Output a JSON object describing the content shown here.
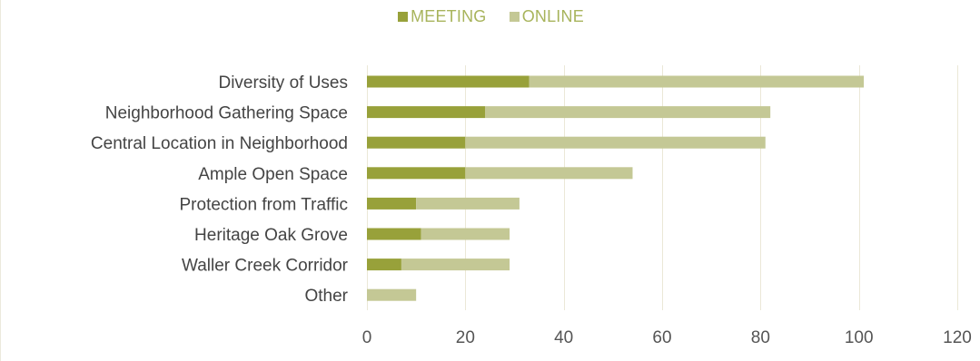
{
  "chart_data": {
    "type": "bar",
    "orientation": "horizontal",
    "stacked": true,
    "categories": [
      "Diversity of Uses",
      "Neighborhood Gathering Space",
      "Central Location in Neighborhood",
      "Ample Open Space",
      "Protection from Traffic",
      "Heritage Oak Grove",
      "Waller Creek Corridor",
      "Other"
    ],
    "series": [
      {
        "name": "MEETING",
        "color": "#98a13a",
        "values": [
          33,
          24,
          20,
          20,
          10,
          11,
          7,
          0
        ]
      },
      {
        "name": "ONLINE",
        "color": "#c4c895",
        "values": [
          68,
          58,
          61,
          34,
          21,
          18,
          22,
          10
        ]
      }
    ],
    "xlim": [
      0,
      120
    ],
    "xticks": [
      "0",
      "20",
      "40",
      "60",
      "80",
      "100",
      "120"
    ],
    "grid": true,
    "legend_position": "top-center",
    "title": "",
    "xlabel": "",
    "ylabel": ""
  }
}
